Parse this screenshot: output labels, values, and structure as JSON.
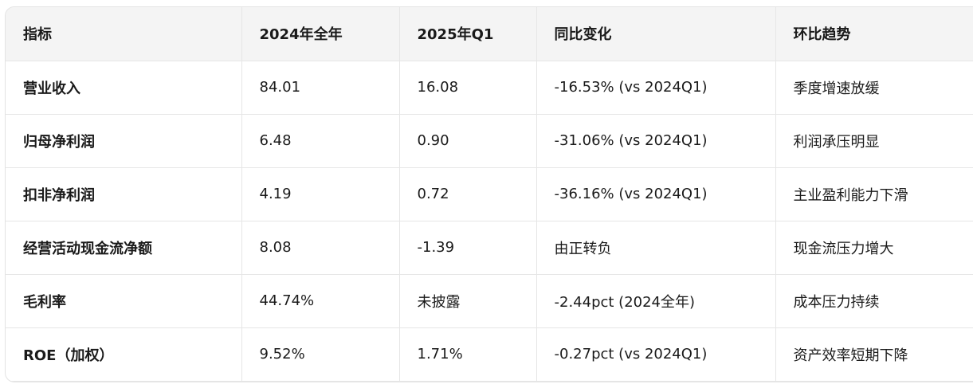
{
  "table": {
    "header": [
      "指标",
      "2024年全年",
      "2025年Q1",
      "同比变化",
      "环比趋势"
    ],
    "rows": [
      [
        "营业收入",
        "84.01",
        "16.08",
        "-16.53% (vs 2024Q1)",
        "季度增速放缓"
      ],
      [
        "归母净利润",
        "6.48",
        "0.90",
        "-31.06% (vs 2024Q1)",
        "利润承压明显"
      ],
      [
        "扣非净利润",
        "4.19",
        "0.72",
        "-36.16% (vs 2024Q1)",
        "主业盈利能力下滑"
      ],
      [
        "经营活动现金流净额",
        "8.08",
        "-1.39",
        "由正转负",
        "现金流压力增大"
      ],
      [
        "毛利率",
        "44.74%",
        "未披露",
        "-2.44pct (2024全年)",
        "成本压力持续"
      ],
      [
        "ROE（加权）",
        "9.52%",
        "1.71%",
        "-0.27pct (vs 2024Q1)",
        "资产效率短期下降"
      ]
    ]
  }
}
